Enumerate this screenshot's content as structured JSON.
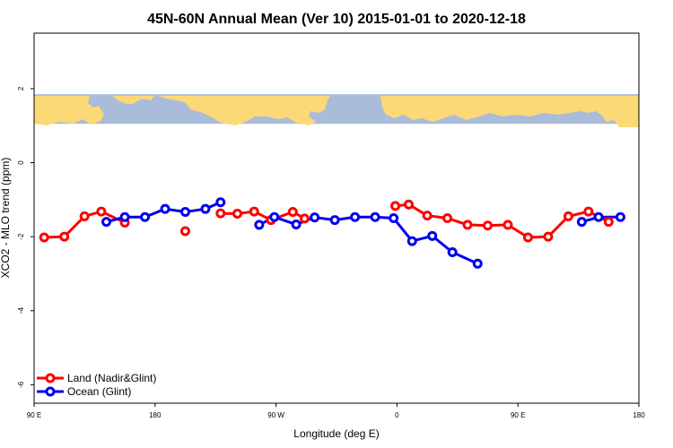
{
  "chart_data": {
    "type": "line",
    "title": "45N-60N Annual Mean (Ver 10)   2015-01-01 to 2020-12-18",
    "xlabel": "Longitude (deg E)",
    "ylabel": "XCO2 - MLO trend (ppm)",
    "xlim": [
      90,
      450
    ],
    "ylim": [
      -6.5,
      3.5
    ],
    "x_ticks": [
      {
        "value": 90,
        "label": "90 E"
      },
      {
        "value": 162,
        "label": "180"
      },
      {
        "value": 234,
        "label": "90 W"
      },
      {
        "value": 306,
        "label": "0"
      },
      {
        "value": 378,
        "label": "90 E"
      },
      {
        "value": 450,
        "label": "180"
      }
    ],
    "y_ticks": [
      -6,
      -4,
      -2,
      0,
      2
    ],
    "map_strip": {
      "y_range": [
        1.05,
        1.85
      ],
      "ocean_color": "#a9bcd9",
      "land_color": "#fbd977"
    },
    "legend_position": "bottom-left",
    "series": [
      {
        "name": "Land (Nadir&Glint)",
        "color": "#ff0000",
        "segments": [
          [
            [
              96,
              -2.02
            ],
            [
              108,
              -2.0
            ],
            [
              120,
              -1.45
            ],
            [
              130,
              -1.32
            ],
            [
              144,
              -1.62
            ]
          ],
          [
            [
              180,
              -1.85
            ]
          ],
          [
            [
              201,
              -1.37
            ],
            [
              211,
              -1.38
            ],
            [
              221,
              -1.32
            ],
            [
              231,
              -1.55
            ],
            [
              244,
              -1.33
            ],
            [
              251,
              -1.51
            ]
          ],
          [
            [
              305,
              -1.17
            ],
            [
              313,
              -1.13
            ],
            [
              324,
              -1.43
            ],
            [
              336,
              -1.5
            ],
            [
              348,
              -1.68
            ],
            [
              360,
              -1.7
            ],
            [
              372,
              -1.68
            ],
            [
              384,
              -2.02
            ],
            [
              396,
              -2.0
            ],
            [
              408,
              -1.45
            ],
            [
              420,
              -1.32
            ],
            [
              432,
              -1.6
            ]
          ]
        ]
      },
      {
        "name": "Ocean (Glint)",
        "color": "#0000ee",
        "segments": [
          [
            [
              133,
              -1.6
            ],
            [
              144,
              -1.47
            ],
            [
              156,
              -1.47
            ],
            [
              168,
              -1.25
            ],
            [
              180,
              -1.33
            ],
            [
              192,
              -1.25
            ],
            [
              201,
              -1.07
            ]
          ],
          [
            [
              224,
              -1.68
            ],
            [
              233,
              -1.47
            ],
            [
              246,
              -1.67
            ],
            [
              257,
              -1.48
            ],
            [
              269,
              -1.55
            ],
            [
              281,
              -1.47
            ],
            [
              293,
              -1.47
            ],
            [
              304,
              -1.5
            ],
            [
              315,
              -2.12
            ],
            [
              327,
              -1.98
            ],
            [
              339,
              -2.42
            ],
            [
              354,
              -2.73
            ]
          ]
        ],
        "extra_segments": [
          [
            [
              416,
              -1.6
            ],
            [
              426,
              -1.47
            ],
            [
              439,
              -1.47
            ]
          ]
        ]
      }
    ]
  }
}
